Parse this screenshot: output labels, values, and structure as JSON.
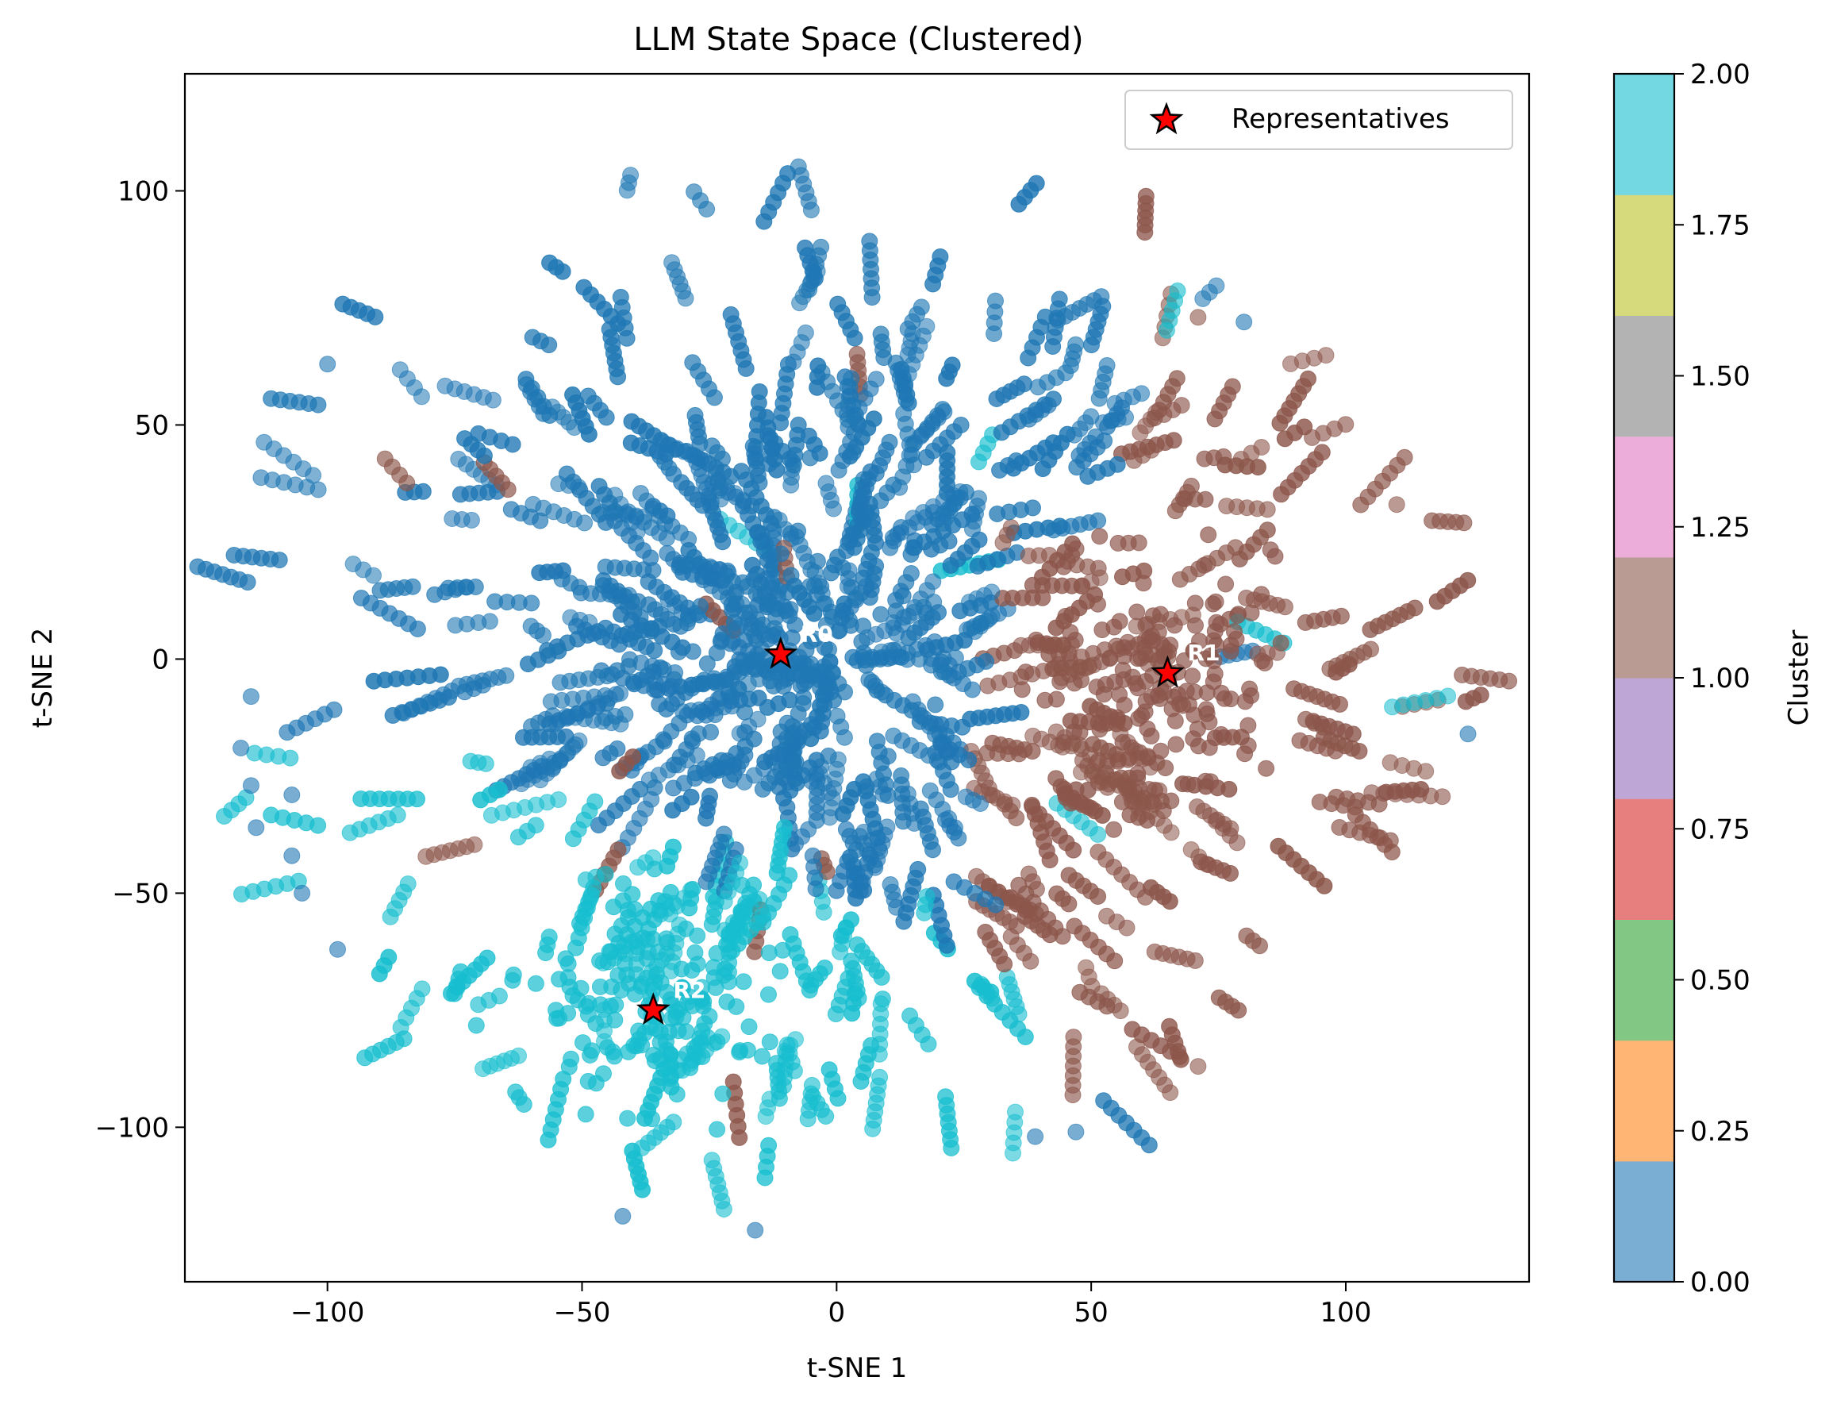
{
  "chart_data": {
    "type": "scatter",
    "title": "LLM State Space (Clustered)",
    "xlabel": "t-SNE 1",
    "ylabel": "t-SNE 2",
    "xlim": [
      -128,
      136
    ],
    "ylim": [
      -133,
      125
    ],
    "xticks": [
      -100,
      -50,
      0,
      50,
      100
    ],
    "yticks": [
      -100,
      -50,
      0,
      50,
      100
    ],
    "xtick_labels": [
      "−100",
      "−50",
      "0",
      "50",
      "100"
    ],
    "ytick_labels": [
      "−100",
      "−50",
      "0",
      "50",
      "100"
    ],
    "grid": false,
    "legend": {
      "position": "top-right",
      "entries": [
        "Representatives"
      ]
    },
    "colormap": "tab10",
    "clusters": [
      {
        "id": 0,
        "color": "#1f77b4",
        "center": [
          -15,
          40
        ],
        "spread": [
          42,
          38
        ]
      },
      {
        "id": 1,
        "color": "#8c564b",
        "center": [
          62,
          -20
        ],
        "spread": [
          28,
          40
        ]
      },
      {
        "id": 2,
        "color": "#17becf",
        "center": [
          -38,
          -48
        ],
        "spread": [
          34,
          34
        ]
      }
    ],
    "representatives": [
      {
        "label": "R0",
        "x": -11,
        "y": 1,
        "cluster": 0
      },
      {
        "label": "R1",
        "x": 65,
        "y": -3,
        "cluster": 1
      },
      {
        "label": "R2",
        "x": -36,
        "y": -75,
        "cluster": 2
      }
    ],
    "outliers": [
      {
        "x": -100,
        "y": 63,
        "cluster": 0
      },
      {
        "x": 80,
        "y": 72,
        "cluster": 0
      },
      {
        "x": 124,
        "y": -16,
        "cluster": 0
      },
      {
        "x": -115,
        "y": -8,
        "cluster": 0
      },
      {
        "x": -117,
        "y": -19,
        "cluster": 0
      },
      {
        "x": -115,
        "y": -27,
        "cluster": 0
      },
      {
        "x": -114,
        "y": -36,
        "cluster": 0
      },
      {
        "x": -107,
        "y": -29,
        "cluster": 0
      },
      {
        "x": -107,
        "y": -42,
        "cluster": 0
      },
      {
        "x": -105,
        "y": -50,
        "cluster": 0
      },
      {
        "x": -98,
        "y": -62,
        "cluster": 0
      },
      {
        "x": -42,
        "y": -119,
        "cluster": 0
      },
      {
        "x": -16,
        "y": -122,
        "cluster": 0
      },
      {
        "x": 39,
        "y": -102,
        "cluster": 0
      },
      {
        "x": 47,
        "y": -101,
        "cluster": 0
      },
      {
        "x": 110,
        "y": 33,
        "cluster": 1
      },
      {
        "x": 71,
        "y": 73,
        "cluster": 1
      },
      {
        "x": 71,
        "y": -87,
        "cluster": 1
      }
    ],
    "colorbar": {
      "label": "Cluster",
      "range": [
        0,
        2
      ],
      "ticks": [
        0,
        0.25,
        0.5,
        0.75,
        1.0,
        1.25,
        1.5,
        1.75,
        2.0
      ],
      "tick_labels": [
        "0.00",
        "0.25",
        "0.50",
        "0.75",
        "1.00",
        "1.25",
        "1.50",
        "1.75",
        "2.00"
      ],
      "segment_colors": [
        "#7aaed2",
        "#ffb574",
        "#82c783",
        "#e77f7e",
        "#bea6d6",
        "#b99b94",
        "#edadda",
        "#b3b3b3",
        "#d7d97d",
        "#74d8e2"
      ]
    }
  }
}
